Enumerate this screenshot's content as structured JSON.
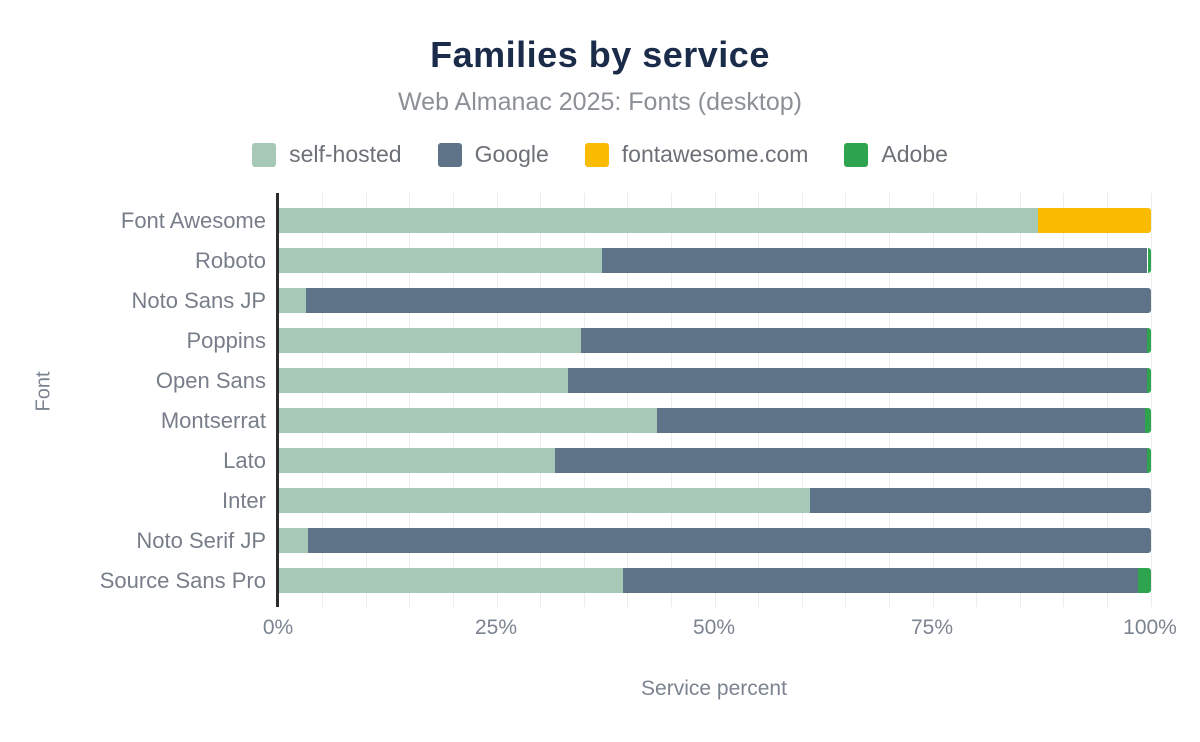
{
  "title": "Families by service",
  "subtitle": "Web Almanac 2025: Fonts (desktop)",
  "colors": {
    "title_text": "#1b2b4a",
    "subtitle_text": "#8b9096",
    "axis_text": "#7b8490",
    "row_label_text": "#777e8a",
    "legend_text": "#6c7177",
    "gridline": "#ededed",
    "axis_line": "#2b2b2b",
    "background": "#ffffff",
    "self_hosted": "#a7c8b6",
    "google": "#5e7288",
    "fontawesome": "#f9bc02",
    "adobe": "#2ea44e"
  },
  "chart_data": {
    "type": "bar",
    "orientation": "horizontal",
    "stacked": true,
    "units": "percent",
    "title": "Families by service",
    "subtitle": "Web Almanac 2025: Fonts (desktop)",
    "xlabel": "Service percent",
    "ylabel": "Font",
    "xlim": [
      0,
      100
    ],
    "x_ticks": [
      "0%",
      "25%",
      "50%",
      "75%",
      "100%"
    ],
    "grid": true,
    "grid_step_percent": 5,
    "legend_position": "top",
    "categories": [
      "Font Awesome",
      "Roboto",
      "Noto Sans JP",
      "Poppins",
      "Open Sans",
      "Montserrat",
      "Lato",
      "Inter",
      "Noto Serif JP",
      "Source Sans Pro"
    ],
    "series": [
      {
        "name": "self-hosted",
        "color": "#a7c8b6",
        "values": [
          87,
          37,
          3.1,
          34.6,
          33.1,
          43.4,
          31.7,
          60.9,
          3.3,
          39.4
        ]
      },
      {
        "name": "Google",
        "color": "#5e7288",
        "values": [
          0,
          62.6,
          96.9,
          64.9,
          66.4,
          55.9,
          67.8,
          39.1,
          96.7,
          59.1
        ]
      },
      {
        "name": "fontawesome.com",
        "color": "#f9bc02",
        "values": [
          13,
          0,
          0,
          0,
          0,
          0,
          0,
          0,
          0,
          0
        ]
      },
      {
        "name": "Adobe",
        "color": "#2ea44e",
        "values": [
          0,
          0.4,
          0,
          0.5,
          0.5,
          0.7,
          0.5,
          0,
          0,
          1.5
        ]
      }
    ]
  }
}
